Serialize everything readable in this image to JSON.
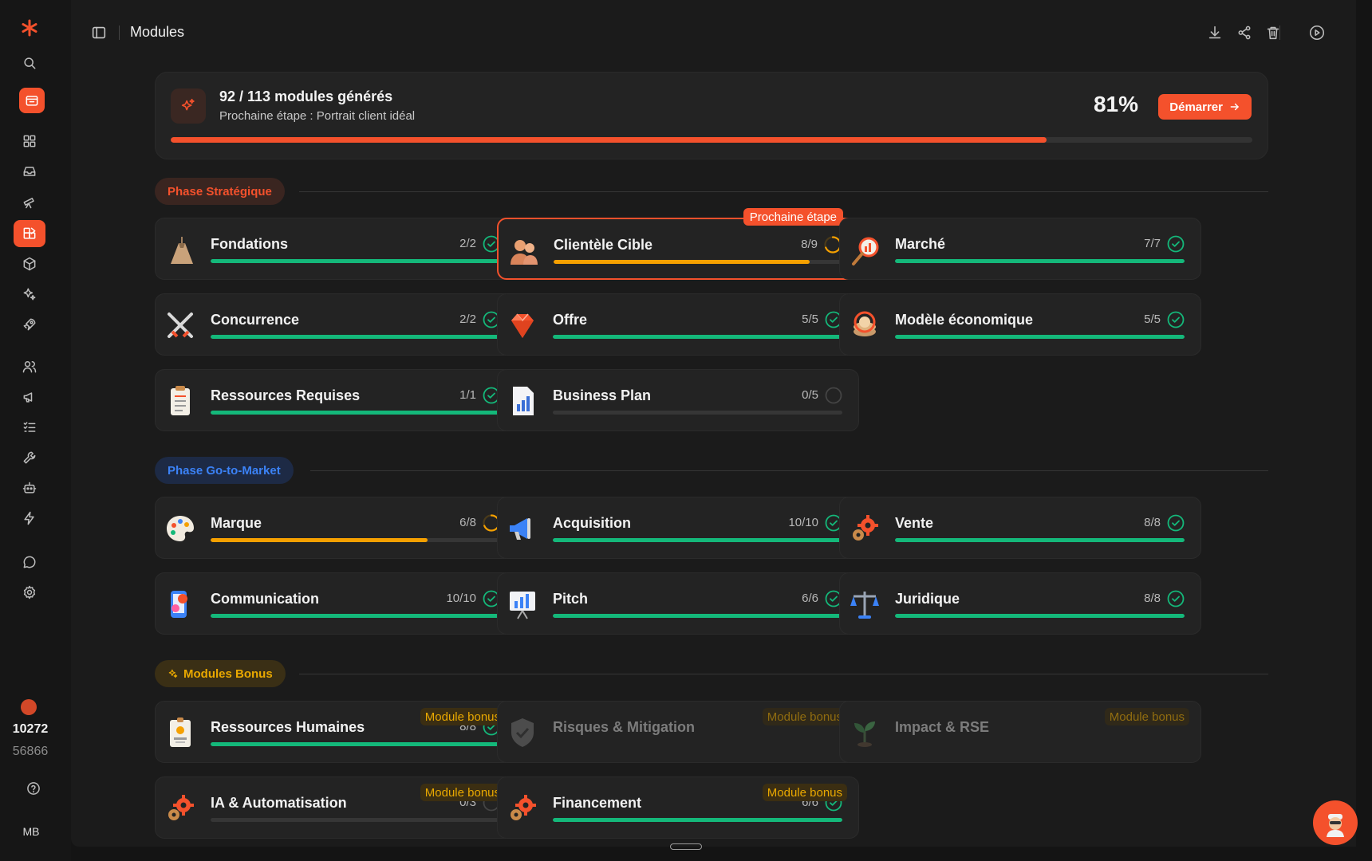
{
  "app": {
    "page_title": "Modules",
    "credits_primary": "10272",
    "credits_secondary": "56866",
    "user_initials": "MB"
  },
  "colors": {
    "accent": "#f4512c",
    "done": "#14b87a",
    "progress": "#f5a000",
    "bonus": "#e9a800",
    "golive": "#3b82f6"
  },
  "sidebar": {
    "items": [
      {
        "icon": "search-icon"
      },
      {
        "icon": "folder-calendar-icon",
        "active": true
      },
      {
        "icon": "grid-icon"
      },
      {
        "icon": "inbox-icon"
      },
      {
        "icon": "telescope-icon"
      },
      {
        "icon": "modules-icon",
        "active": true
      },
      {
        "icon": "box-icon"
      },
      {
        "icon": "sparkles-icon"
      },
      {
        "icon": "rocket-icon"
      },
      {
        "icon": "users-icon"
      },
      {
        "icon": "megaphone-icon"
      },
      {
        "icon": "checklist-icon"
      },
      {
        "icon": "wrench-icon"
      },
      {
        "icon": "robot-icon"
      },
      {
        "icon": "bolt-icon"
      },
      {
        "icon": "chat-icon"
      },
      {
        "icon": "gear-icon"
      },
      {
        "icon": "help-icon"
      }
    ]
  },
  "toolbar": {
    "icons": [
      "download-icon",
      "share-icon",
      "trash-icon",
      "play-icon"
    ]
  },
  "progress": {
    "title": "92 / 113 modules générés",
    "subtitle": "Prochaine étape : Portrait client idéal",
    "percent_label": "81%",
    "fraction": 0.81,
    "start_label": "Démarrer"
  },
  "phases": {
    "strategic": {
      "label": "Phase Stratégique"
    },
    "gtm": {
      "label": "Phase Go-to-Market"
    },
    "bonus": {
      "label": "Modules Bonus"
    }
  },
  "next_step_tag": "Prochaine étape",
  "bonus_tag": "Module bonus",
  "modules": {
    "strategic": [
      {
        "name": "Fondations",
        "count": "2/2",
        "fraction": 1,
        "status": "done",
        "icon": "volcano-icon"
      },
      {
        "name": "Clientèle Cible",
        "count": "8/9",
        "fraction": 0.89,
        "status": "progress",
        "icon": "people-icon",
        "next": true
      },
      {
        "name": "Marché",
        "count": "7/7",
        "fraction": 1,
        "status": "done",
        "icon": "magnifier-chart-icon"
      },
      {
        "name": "Concurrence",
        "count": "2/2",
        "fraction": 1,
        "status": "done",
        "icon": "swords-icon"
      },
      {
        "name": "Offre",
        "count": "5/5",
        "fraction": 1,
        "status": "done",
        "icon": "gem-icon"
      },
      {
        "name": "Modèle économique",
        "count": "5/5",
        "fraction": 1,
        "status": "done",
        "icon": "coins-icon"
      },
      {
        "name": "Ressources Requises",
        "count": "1/1",
        "fraction": 1,
        "status": "done",
        "icon": "clipboard-icon"
      },
      {
        "name": "Business Plan",
        "count": "0/5",
        "fraction": 0,
        "status": "todo",
        "icon": "report-icon"
      }
    ],
    "gtm": [
      {
        "name": "Marque",
        "count": "6/8",
        "fraction": 0.75,
        "status": "progress",
        "icon": "palette-icon"
      },
      {
        "name": "Acquisition",
        "count": "10/10",
        "fraction": 1,
        "status": "done",
        "icon": "megaphone-icon"
      },
      {
        "name": "Vente",
        "count": "8/8",
        "fraction": 1,
        "status": "done",
        "icon": "gears-icon"
      },
      {
        "name": "Communication",
        "count": "10/10",
        "fraction": 1,
        "status": "done",
        "icon": "phone-social-icon"
      },
      {
        "name": "Pitch",
        "count": "6/6",
        "fraction": 1,
        "status": "done",
        "icon": "presentation-icon"
      },
      {
        "name": "Juridique",
        "count": "8/8",
        "fraction": 1,
        "status": "done",
        "icon": "scales-icon"
      }
    ],
    "bonus": [
      {
        "name": "Ressources Humaines",
        "count": "8/8",
        "fraction": 1,
        "status": "done",
        "icon": "id-badge-icon"
      },
      {
        "name": "Risques & Mitigation",
        "count": "",
        "fraction": 0,
        "status": "locked",
        "icon": "shield-icon"
      },
      {
        "name": "Impact & RSE",
        "count": "",
        "fraction": 0,
        "status": "locked",
        "icon": "sprout-icon"
      },
      {
        "name": "IA & Automatisation",
        "count": "0/3",
        "fraction": 0,
        "status": "todo",
        "icon": "gears-icon"
      },
      {
        "name": "Financement",
        "count": "6/6",
        "fraction": 1,
        "status": "done",
        "icon": "gears-icon"
      }
    ]
  }
}
